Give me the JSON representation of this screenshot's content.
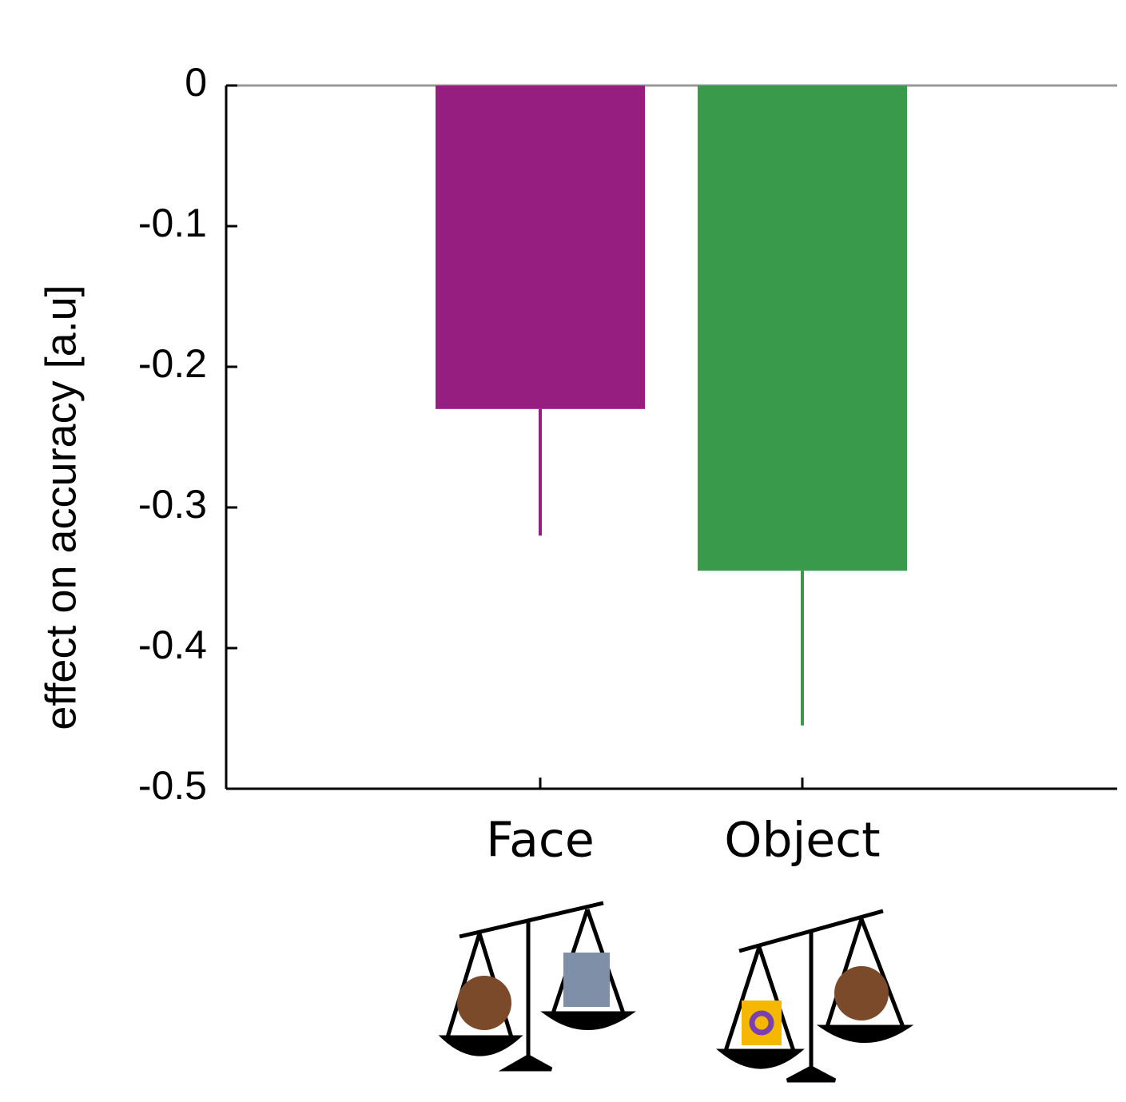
{
  "chart_data": {
    "type": "bar",
    "ylabel": "effect on accuracy [a.u]",
    "categories": [
      "Face",
      "Object"
    ],
    "values": [
      -0.23,
      -0.345
    ],
    "errors": [
      0.09,
      0.11
    ],
    "colors": [
      "#951e80",
      "#3a9a4c"
    ],
    "ylim": [
      -0.5,
      0
    ],
    "yticks": [
      0,
      -0.1,
      -0.2,
      -0.3,
      -0.4,
      -0.5
    ]
  }
}
